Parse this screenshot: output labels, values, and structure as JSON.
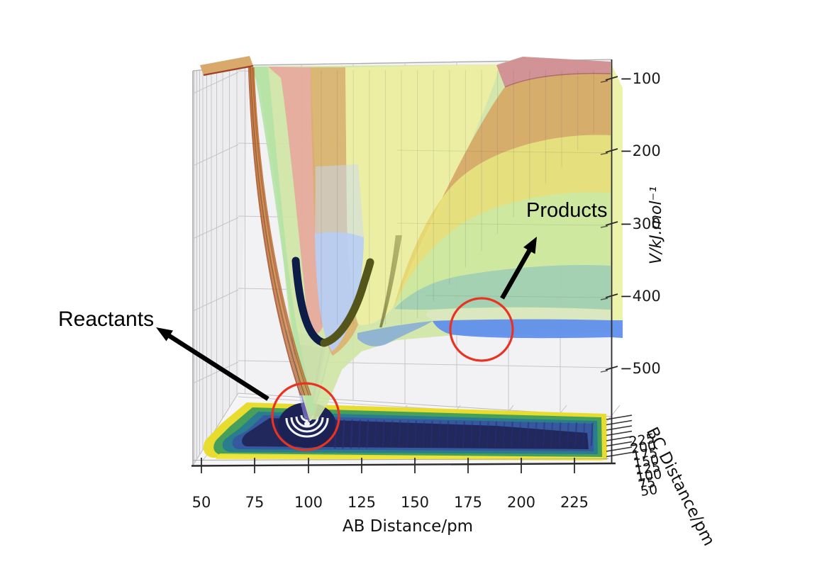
{
  "chart_data": {
    "type": "surface",
    "title": "",
    "description": "3D potential energy surface V(AB,BC) with reactant well, product valley, floor contour projection (viridis) and reaction path curve",
    "x_axis": {
      "label": "AB Distance/pm",
      "ticks": [
        "50",
        "75",
        "100",
        "125",
        "150",
        "175",
        "200",
        "225"
      ]
    },
    "y_axis": {
      "label": "BC Distance/pm",
      "ticks": [
        "225",
        "200",
        "175",
        "150",
        "125",
        "100",
        "75",
        "50"
      ]
    },
    "z_axis": {
      "label": "V/kJ.mol⁻¹",
      "ticks": [
        "−100",
        "−200",
        "−300",
        "−400",
        "−500"
      ]
    },
    "floor_contour_colormap": "viridis",
    "surface_band_colors": [
      "#d08a92",
      "#d7a260",
      "#e7de74",
      "#cde99c",
      "#9bccb2",
      "#5b8dee"
    ],
    "reaction_path_color": "#0d1d47",
    "legend": null,
    "grid": true
  },
  "annotations": {
    "reactants": "Reactants",
    "products": "Products"
  },
  "markers": {
    "reactant_circle_color": "#e93322",
    "product_circle_color": "#e93322",
    "arrow_color": "#000000"
  }
}
